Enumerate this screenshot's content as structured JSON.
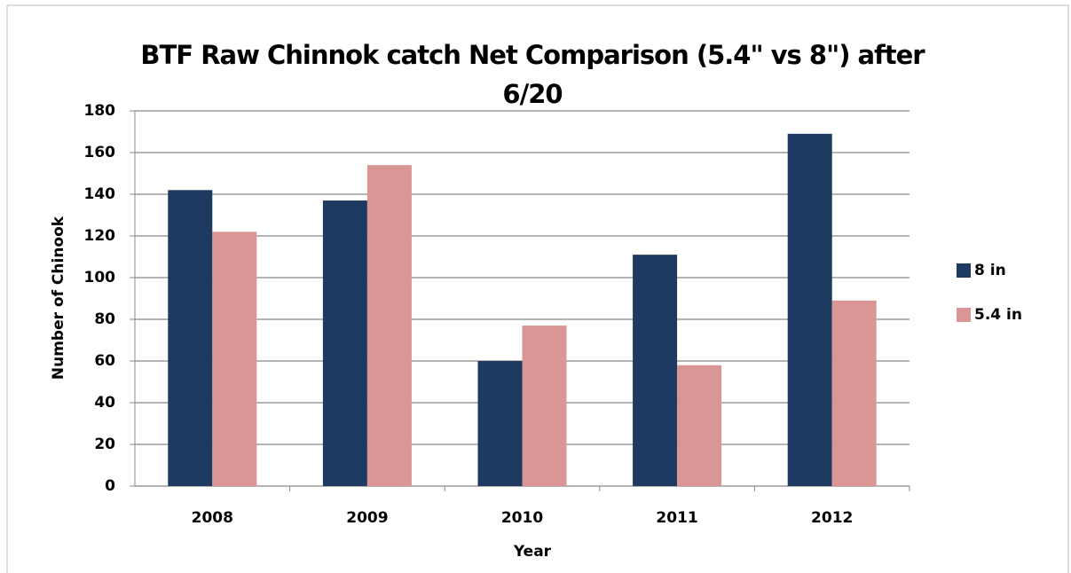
{
  "chart_data": {
    "type": "bar",
    "title": "BTF Raw Chinnok catch Net Comparison (5.4\" vs 8\") after 6/20",
    "xlabel": "Year",
    "ylabel": "Number of Chinook",
    "categories": [
      "2008",
      "2009",
      "2010",
      "2011",
      "2012"
    ],
    "series": [
      {
        "name": "8 in",
        "color": "#1f3a60",
        "values": [
          142,
          137,
          60,
          111,
          169
        ]
      },
      {
        "name": "5.4 in",
        "color": "#d99694",
        "values": [
          122,
          154,
          77,
          58,
          89
        ]
      }
    ],
    "ylim": [
      0,
      180
    ],
    "yticks": [
      0,
      20,
      40,
      60,
      80,
      100,
      120,
      140,
      160,
      180
    ],
    "grid": true,
    "legend": "right"
  }
}
